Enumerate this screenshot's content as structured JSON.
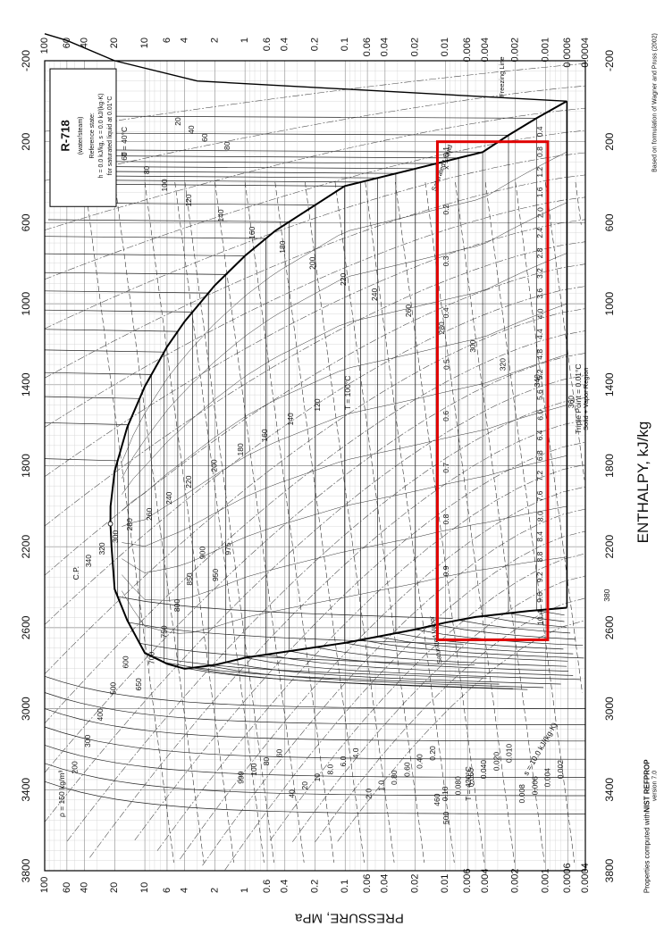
{
  "chart_data": {
    "type": "line",
    "title": "R-718",
    "subtitle": "(water/steam)",
    "reference_state": [
      "Reference state:",
      "h = 0.0 kJ/kg, s = 0.0 kJ/(kg·K)",
      "for saturated liquid at 0.01°C"
    ],
    "xlabel": "ENTHALPY, kJ/kg",
    "ylabel": "PRESSURE, MPa",
    "y_scale": "log",
    "xlim": [
      -200,
      3800
    ],
    "ylim": [
      0.0004,
      100
    ],
    "grid": true,
    "x_ticks": [
      "-200",
      "200",
      "600",
      "1000",
      "1400",
      "1800",
      "2200",
      "2600",
      "3000",
      "3400",
      "3800"
    ],
    "y_ticks": [
      {
        "value": 0.0004,
        "label": "0.0004"
      },
      {
        "value": 0.0006,
        "label": "0.0006"
      },
      {
        "value": 0.001,
        "label": "0.001"
      },
      {
        "value": 0.002,
        "label": "0.002"
      },
      {
        "value": 0.004,
        "label": "0.004"
      },
      {
        "value": 0.006,
        "label": "0.006"
      },
      {
        "value": 0.01,
        "label": "0.01"
      },
      {
        "value": 0.02,
        "label": "0.02"
      },
      {
        "value": 0.04,
        "label": "0.04"
      },
      {
        "value": 0.06,
        "label": "0.06"
      },
      {
        "value": 0.1,
        "label": "0.1"
      },
      {
        "value": 0.2,
        "label": "0.2"
      },
      {
        "value": 0.4,
        "label": "0.4"
      },
      {
        "value": 0.6,
        "label": "0.6"
      },
      {
        "value": 1,
        "label": "1"
      },
      {
        "value": 2,
        "label": "2"
      },
      {
        "value": 4,
        "label": "4"
      },
      {
        "value": 6,
        "label": "6"
      },
      {
        "value": 10,
        "label": "10"
      },
      {
        "value": 20,
        "label": "20"
      },
      {
        "value": 40,
        "label": "40"
      },
      {
        "value": 60,
        "label": "60"
      },
      {
        "value": 100,
        "label": "100"
      }
    ],
    "series": [
      {
        "name": "Saturated Liquid",
        "x": [
          0,
          84,
          168,
          251,
          419,
          640,
          763,
          909,
          1087,
          1213,
          1408,
          1611,
          1827,
          2000,
          2087
        ],
        "y": [
          0.000612,
          0.00123,
          0.00234,
          0.00424,
          0.1014,
          0.5,
          1,
          2,
          4,
          6,
          10,
          15,
          20,
          22,
          22.064
        ]
      },
      {
        "name": "Saturated Vapor",
        "x": [
          2087,
          2200,
          2410,
          2563,
          2725,
          2778,
          2803,
          2784,
          2748,
          2675,
          2609,
          2575,
          2547,
          2518,
          2501
        ],
        "y": [
          22.064,
          21.5,
          20,
          15,
          10,
          6,
          4,
          2,
          1,
          0.1,
          0.02,
          0.01,
          0.005,
          0.0015,
          0.000612
        ]
      },
      {
        "name": "Freezing Line",
        "x": [
          -333,
          -300,
          -200,
          -100,
          0
        ],
        "y": [
          100,
          60,
          20,
          3,
          0.000612
        ]
      },
      {
        "name": "Triple Point",
        "x": [
          0,
          2501
        ],
        "y": [
          0.000612,
          0.000612
        ]
      }
    ],
    "highlight_box": {
      "color": "#e00000",
      "h": [
        200,
        2660
      ],
      "p": [
        0.00095,
        0.012
      ]
    },
    "temperature_labels": [
      "T = 40°C",
      "60",
      "80",
      "100",
      "120",
      "140",
      "160",
      "180",
      "200",
      "220",
      "240",
      "260",
      "280",
      "300",
      "320",
      "340",
      "360",
      "380",
      "T = 420°C",
      "460",
      "500",
      "20",
      "40",
      "60",
      "80",
      "T = 100°C",
      "120",
      "140",
      "160",
      "180",
      "200",
      "220",
      "240",
      "260",
      "280",
      "300",
      "320",
      "340",
      "C.P."
    ],
    "density_labels": [
      "ρ = 150 kg/m³",
      "200",
      "300",
      "400",
      "500",
      "600",
      "650",
      "700",
      "750",
      "800",
      "850",
      "900",
      "950",
      "975",
      "999",
      "100",
      "80",
      "60",
      "40",
      "20",
      "10",
      "8.0",
      "6.0",
      "4.0",
      "2.0",
      "1.0",
      "0.80",
      "0.60",
      "0.40",
      "0.20",
      "0.10",
      "0.080",
      "0.060",
      "0.040",
      "0.020",
      "0.010",
      "0.008",
      "0.006",
      "0.004",
      "0.002"
    ],
    "quality_labels": [
      "x = 0.1",
      "0.2",
      "0.3",
      "0.4",
      "0.5",
      "0.6",
      "0.7",
      "0.8",
      "0.9"
    ],
    "entropy_labels": [
      "s = 10.0 kJ/(kg·K)",
      "0.4",
      "0.8",
      "1.2",
      "1.6",
      "2.0",
      "2.4",
      "2.8",
      "3.2",
      "3.6",
      "4.0",
      "4.4",
      "4.8",
      "5.2",
      "5.6",
      "6.0",
      "6.4",
      "6.8",
      "7.2",
      "7.6",
      "8.0",
      "8.4",
      "8.8",
      "9.2",
      "9.6",
      "10.4"
    ],
    "annotations": [
      "Triple Point = 0.01°C",
      "Solid + Vapor Region",
      "Saturated Liquid",
      "Saturated Vapor",
      "Freezing Line"
    ],
    "credits": {
      "left_prefix": "Properties computed with",
      "left_name": "NIST REFPROP",
      "left_version": "version 7.0",
      "right": "Based on formulation of Wagner and Pruss (2002)"
    }
  }
}
